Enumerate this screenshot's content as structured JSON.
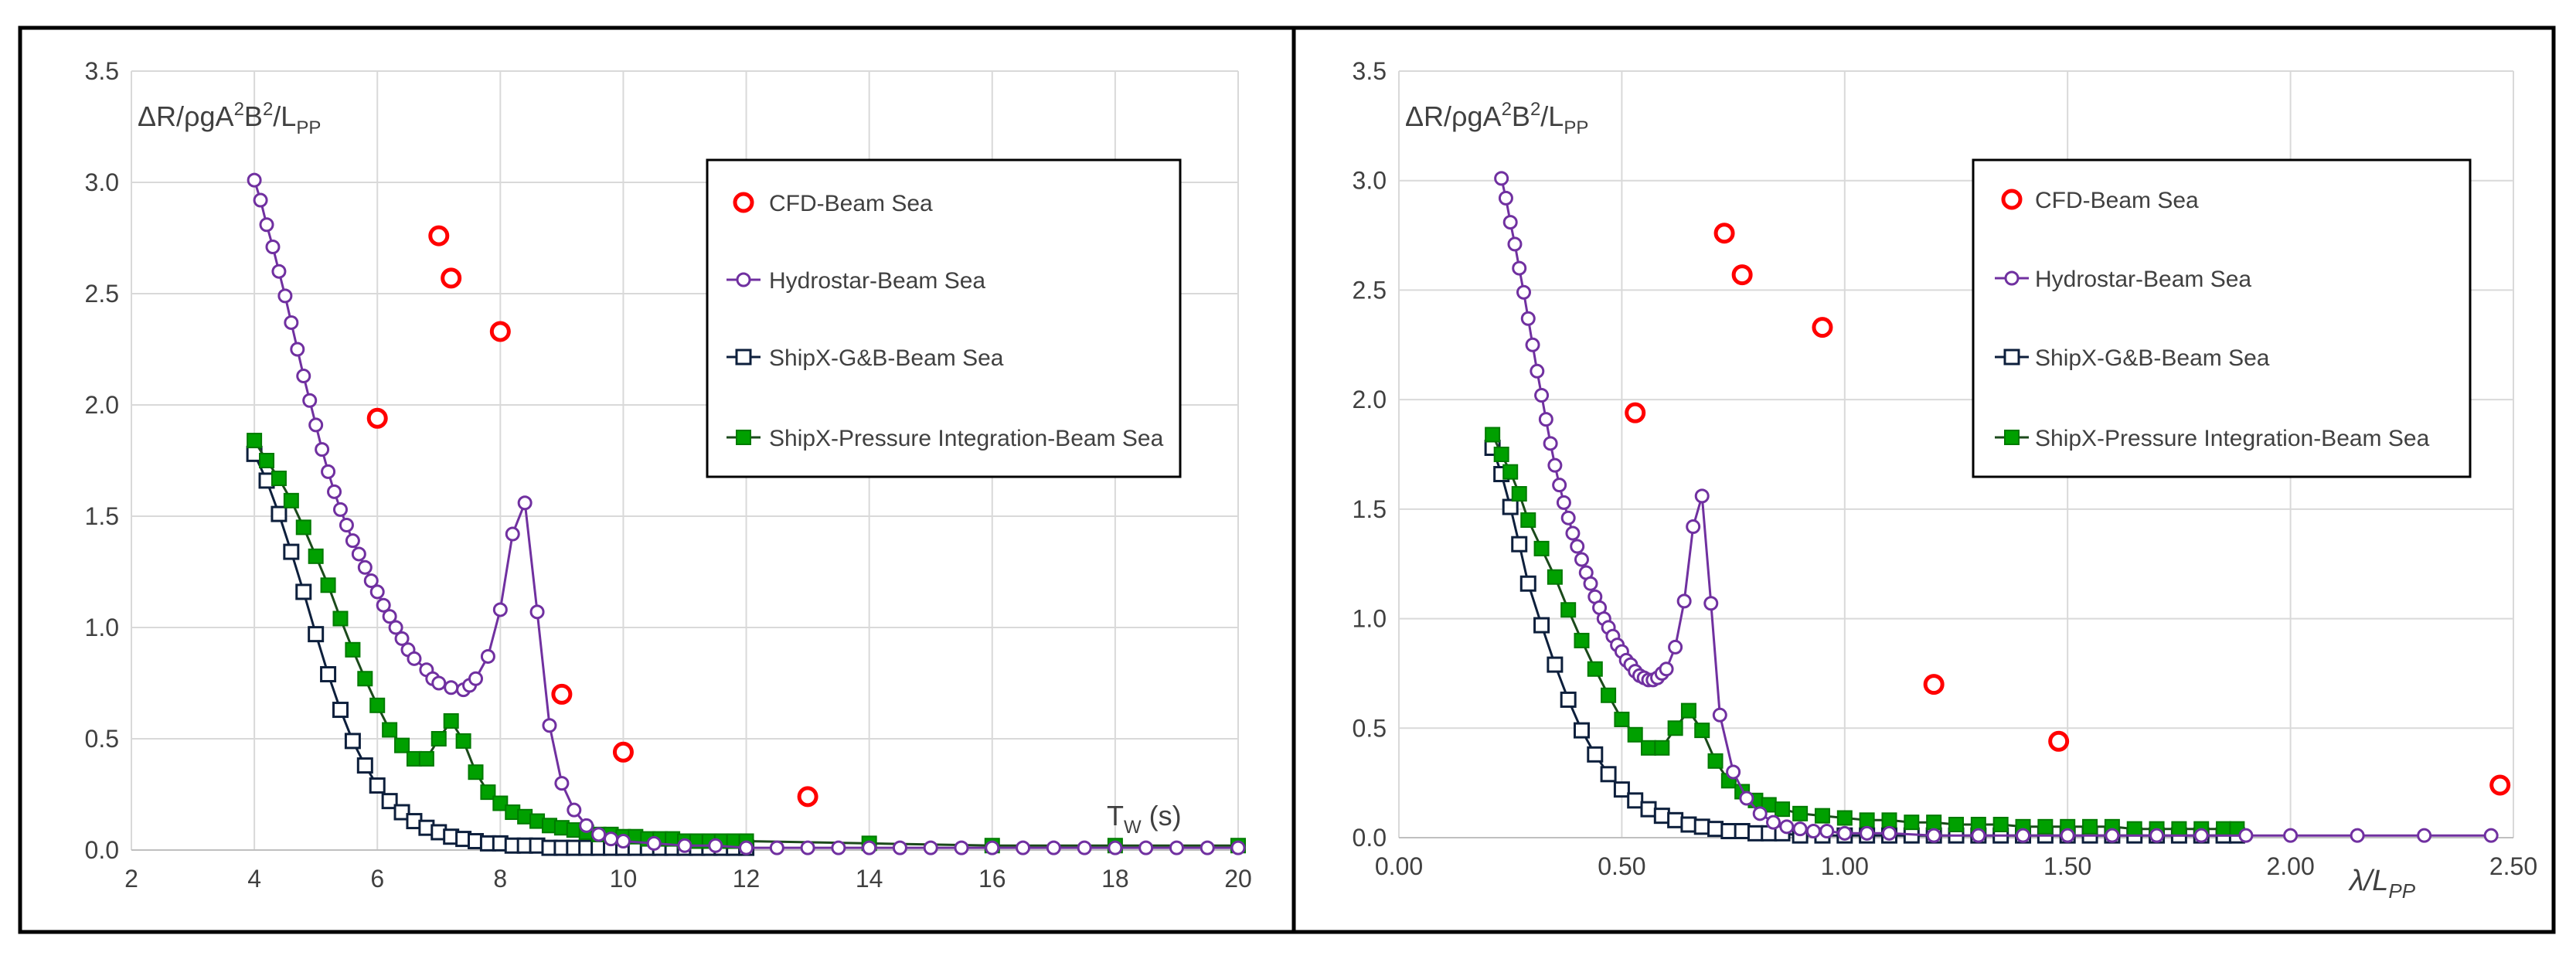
{
  "colors": {
    "cfd": "#ff0000",
    "hydrostar": "#7030a0",
    "shipx_gb": "#0d1f3c",
    "shipx_pi": "#00a000",
    "pi_line": "#1b4a1b",
    "grid": "#d9d9d9",
    "frame": "#000000",
    "text": "#404040"
  },
  "chart_data": [
    {
      "type": "scatter",
      "title": "",
      "ylabel_text": "ΔR/ρgA²B²/L_PP",
      "ylabel_main": "ΔR/ρgA",
      "ylabel_sup1": "2",
      "ylabel_mid": "B",
      "ylabel_sup2": "2",
      "ylabel_slash": "/L",
      "ylabel_sub": "PP",
      "xlabel_main": "T",
      "xlabel_sub": "W",
      "xlabel_tail": " (s)",
      "xlim": [
        2,
        20
      ],
      "ylim": [
        0,
        3.5
      ],
      "xticks": [
        "2",
        "4",
        "6",
        "8",
        "10",
        "12",
        "14",
        "16",
        "18",
        "20"
      ],
      "yticks": [
        "0.0",
        "0.5",
        "1.0",
        "1.5",
        "2.0",
        "2.5",
        "3.0",
        "3.5"
      ],
      "legend": [
        "CFD-Beam Sea",
        "Hydrostar-Beam Sea",
        "ShipX-G&B-Beam Sea",
        "ShipX-Pressure Integration-Beam Sea"
      ],
      "series": [
        {
          "name": "CFD-Beam Sea",
          "style": "cfd",
          "x": [
            6,
            7,
            7.2,
            8,
            9,
            10,
            13
          ],
          "y": [
            1.94,
            2.76,
            2.57,
            2.33,
            0.7,
            0.44,
            0.24
          ]
        },
        {
          "name": "Hydrostar-Beam Sea",
          "style": "hydrostar",
          "x": [
            4.0,
            4.1,
            4.2,
            4.3,
            4.4,
            4.5,
            4.6,
            4.7,
            4.8,
            4.9,
            5.0,
            5.1,
            5.2,
            5.3,
            5.4,
            5.5,
            5.6,
            5.7,
            5.8,
            5.9,
            6.0,
            6.1,
            6.2,
            6.3,
            6.4,
            6.5,
            6.6,
            6.8,
            6.9,
            7.0,
            7.2,
            7.4,
            7.5,
            7.6,
            7.8,
            8.0,
            8.2,
            8.4,
            8.6,
            8.8,
            9.0,
            9.2,
            9.4,
            9.6,
            9.8,
            10.0,
            10.5,
            11.0,
            11.5,
            12.0,
            12.5,
            13.0,
            13.5,
            14.0,
            14.5,
            15.0,
            15.5,
            16.0,
            16.5,
            17.0,
            17.5,
            18.0,
            18.5,
            19.0,
            19.5,
            20.0
          ],
          "y": [
            3.01,
            2.92,
            2.81,
            2.71,
            2.6,
            2.49,
            2.37,
            2.25,
            2.13,
            2.02,
            1.91,
            1.8,
            1.7,
            1.61,
            1.53,
            1.46,
            1.39,
            1.33,
            1.27,
            1.21,
            1.16,
            1.1,
            1.05,
            1.0,
            0.95,
            0.9,
            0.86,
            0.81,
            0.77,
            0.75,
            0.73,
            0.72,
            0.74,
            0.77,
            0.87,
            1.08,
            1.42,
            1.56,
            1.07,
            0.56,
            0.3,
            0.18,
            0.11,
            0.07,
            0.05,
            0.04,
            0.03,
            0.02,
            0.02,
            0.01,
            0.01,
            0.01,
            0.01,
            0.01,
            0.01,
            0.01,
            0.01,
            0.01,
            0.01,
            0.01,
            0.01,
            0.01,
            0.01,
            0.01,
            0.01,
            0.01
          ]
        },
        {
          "name": "ShipX-G&B-Beam Sea",
          "style": "gb",
          "x": [
            4.0,
            4.2,
            4.4,
            4.6,
            4.8,
            5.0,
            5.2,
            5.4,
            5.6,
            5.8,
            6.0,
            6.2,
            6.4,
            6.6,
            6.8,
            7.0,
            7.2,
            7.4,
            7.6,
            7.8,
            8.0,
            8.2,
            8.4,
            8.6,
            8.8,
            9.0,
            9.2,
            9.4,
            9.6,
            9.8,
            10.0,
            10.2,
            10.4,
            10.6,
            10.8,
            11.0,
            11.2,
            11.4,
            11.6,
            11.8,
            12.0
          ],
          "y": [
            1.78,
            1.66,
            1.51,
            1.34,
            1.16,
            0.97,
            0.79,
            0.63,
            0.49,
            0.38,
            0.29,
            0.22,
            0.17,
            0.13,
            0.1,
            0.08,
            0.06,
            0.05,
            0.04,
            0.03,
            0.03,
            0.02,
            0.02,
            0.02,
            0.01,
            0.01,
            0.01,
            0.01,
            0.01,
            0.01,
            0.01,
            0.01,
            0.01,
            0.01,
            0.01,
            0.01,
            0.01,
            0.01,
            0.01,
            0.01,
            0.01
          ]
        },
        {
          "name": "ShipX-Pressure Integration-Beam Sea",
          "style": "pi",
          "x": [
            4.0,
            4.2,
            4.4,
            4.6,
            4.8,
            5.0,
            5.2,
            5.4,
            5.6,
            5.8,
            6.0,
            6.2,
            6.4,
            6.6,
            6.8,
            7.0,
            7.2,
            7.4,
            7.6,
            7.8,
            8.0,
            8.2,
            8.4,
            8.6,
            8.8,
            9.0,
            9.2,
            9.4,
            9.6,
            9.8,
            10.0,
            10.2,
            10.4,
            10.6,
            10.8,
            11.0,
            11.2,
            11.4,
            11.6,
            11.8,
            12.0,
            14.0,
            16.0,
            18.0,
            20.0
          ],
          "y": [
            1.84,
            1.75,
            1.67,
            1.57,
            1.45,
            1.32,
            1.19,
            1.04,
            0.9,
            0.77,
            0.65,
            0.54,
            0.47,
            0.41,
            0.41,
            0.5,
            0.58,
            0.49,
            0.35,
            0.26,
            0.21,
            0.17,
            0.15,
            0.13,
            0.11,
            0.1,
            0.09,
            0.08,
            0.07,
            0.07,
            0.06,
            0.06,
            0.05,
            0.05,
            0.05,
            0.04,
            0.04,
            0.04,
            0.04,
            0.04,
            0.04,
            0.03,
            0.02,
            0.02,
            0.02
          ]
        }
      ]
    },
    {
      "type": "scatter",
      "title": "",
      "ylabel_text": "ΔR/ρgA²B²/L_PP",
      "ylabel_main": "ΔR/ρgA",
      "ylabel_sup1": "2",
      "ylabel_mid": "B",
      "ylabel_sup2": "2",
      "ylabel_slash": "/L",
      "ylabel_sub": "PP",
      "xlabel_main": "λ/L",
      "xlabel_sub": "PP",
      "xlabel_tail": "",
      "xlim": [
        0,
        2.5
      ],
      "ylim": [
        0,
        3.5
      ],
      "xticks": [
        "0.00",
        "0.50",
        "1.00",
        "1.50",
        "2.00",
        "2.50"
      ],
      "yticks": [
        "0.0",
        "0.5",
        "1.0",
        "1.5",
        "2.0",
        "2.5",
        "3.0",
        "3.5"
      ],
      "legend": [
        "CFD-Beam Sea",
        "Hydrostar-Beam Sea",
        "ShipX-G&B-Beam Sea",
        "ShipX-Pressure Integration-Beam Sea"
      ],
      "series": [
        {
          "name": "CFD-Beam Sea",
          "style": "cfd",
          "x": [
            0.53,
            0.73,
            0.77,
            0.95,
            1.2,
            1.48,
            2.47
          ],
          "y": [
            1.94,
            2.76,
            2.57,
            2.33,
            0.7,
            0.44,
            0.24
          ]
        },
        {
          "name": "Hydrostar-Beam Sea",
          "style": "hydrostar",
          "x": [
            0.23,
            0.24,
            0.25,
            0.26,
            0.27,
            0.28,
            0.29,
            0.3,
            0.31,
            0.32,
            0.33,
            0.34,
            0.35,
            0.36,
            0.37,
            0.38,
            0.39,
            0.4,
            0.41,
            0.42,
            0.43,
            0.44,
            0.45,
            0.46,
            0.47,
            0.48,
            0.49,
            0.5,
            0.51,
            0.52,
            0.53,
            0.54,
            0.55,
            0.56,
            0.57,
            0.58,
            0.59,
            0.6,
            0.62,
            0.64,
            0.66,
            0.68,
            0.7,
            0.72,
            0.75,
            0.78,
            0.81,
            0.84,
            0.87,
            0.9,
            0.93,
            0.96,
            1.0,
            1.05,
            1.1,
            1.2,
            1.3,
            1.4,
            1.5,
            1.6,
            1.7,
            1.8,
            1.9,
            2.0,
            2.15,
            2.3,
            2.45
          ],
          "y": [
            3.01,
            2.92,
            2.81,
            2.71,
            2.6,
            2.49,
            2.37,
            2.25,
            2.13,
            2.02,
            1.91,
            1.8,
            1.7,
            1.61,
            1.53,
            1.46,
            1.39,
            1.33,
            1.27,
            1.21,
            1.16,
            1.1,
            1.05,
            1.0,
            0.96,
            0.92,
            0.88,
            0.85,
            0.81,
            0.79,
            0.76,
            0.74,
            0.73,
            0.72,
            0.72,
            0.73,
            0.75,
            0.77,
            0.87,
            1.08,
            1.42,
            1.56,
            1.07,
            0.56,
            0.3,
            0.18,
            0.11,
            0.07,
            0.05,
            0.04,
            0.03,
            0.03,
            0.02,
            0.02,
            0.02,
            0.01,
            0.01,
            0.01,
            0.01,
            0.01,
            0.01,
            0.01,
            0.01,
            0.01,
            0.01,
            0.01,
            0.01
          ]
        },
        {
          "name": "ShipX-G&B-Beam Sea",
          "style": "gb",
          "x": [
            0.21,
            0.23,
            0.25,
            0.27,
            0.29,
            0.32,
            0.35,
            0.38,
            0.41,
            0.44,
            0.47,
            0.5,
            0.53,
            0.56,
            0.59,
            0.62,
            0.65,
            0.68,
            0.71,
            0.74,
            0.77,
            0.8,
            0.83,
            0.86,
            0.9,
            0.95,
            1.0,
            1.05,
            1.1,
            1.15,
            1.2,
            1.25,
            1.3,
            1.35,
            1.4,
            1.45,
            1.5,
            1.55,
            1.6,
            1.65,
            1.7,
            1.75,
            1.8,
            1.85,
            1.88
          ],
          "y": [
            1.78,
            1.66,
            1.51,
            1.34,
            1.16,
            0.97,
            0.79,
            0.63,
            0.49,
            0.38,
            0.29,
            0.22,
            0.17,
            0.13,
            0.1,
            0.08,
            0.06,
            0.05,
            0.04,
            0.03,
            0.03,
            0.02,
            0.02,
            0.02,
            0.01,
            0.01,
            0.01,
            0.01,
            0.01,
            0.01,
            0.01,
            0.01,
            0.01,
            0.01,
            0.01,
            0.01,
            0.01,
            0.01,
            0.01,
            0.01,
            0.01,
            0.01,
            0.01,
            0.01,
            0.01
          ]
        },
        {
          "name": "ShipX-Pressure Integration-Beam Sea",
          "style": "pi",
          "x": [
            0.21,
            0.23,
            0.25,
            0.27,
            0.29,
            0.32,
            0.35,
            0.38,
            0.41,
            0.44,
            0.47,
            0.5,
            0.53,
            0.56,
            0.59,
            0.62,
            0.65,
            0.68,
            0.71,
            0.74,
            0.77,
            0.8,
            0.83,
            0.86,
            0.9,
            0.95,
            1.0,
            1.05,
            1.1,
            1.15,
            1.2,
            1.25,
            1.3,
            1.35,
            1.4,
            1.45,
            1.5,
            1.55,
            1.6,
            1.65,
            1.7,
            1.75,
            1.8,
            1.85,
            1.88
          ],
          "y": [
            1.84,
            1.75,
            1.67,
            1.57,
            1.45,
            1.32,
            1.19,
            1.04,
            0.9,
            0.77,
            0.65,
            0.54,
            0.47,
            0.41,
            0.41,
            0.5,
            0.58,
            0.49,
            0.35,
            0.26,
            0.21,
            0.17,
            0.15,
            0.13,
            0.11,
            0.1,
            0.09,
            0.08,
            0.08,
            0.07,
            0.07,
            0.06,
            0.06,
            0.06,
            0.05,
            0.05,
            0.05,
            0.05,
            0.05,
            0.04,
            0.04,
            0.04,
            0.04,
            0.04,
            0.04
          ]
        }
      ]
    }
  ]
}
